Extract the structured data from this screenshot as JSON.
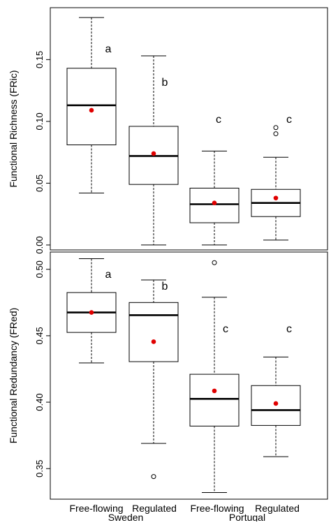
{
  "chart_data": [
    {
      "type": "boxplot",
      "ylabel": "Functional Richness (FRic)",
      "ylim": [
        -0.004,
        0.192
      ],
      "yticks": [
        0.0,
        0.05,
        0.1,
        0.15
      ],
      "ytick_labels": [
        "0.00",
        "0.05",
        "0.10",
        "0.15"
      ],
      "mean_color": "#e00000",
      "boxes": [
        {
          "category": "Free-flowing Sweden",
          "whisker_low": 0.042,
          "q1": 0.081,
          "median": 0.113,
          "q3": 0.143,
          "whisker_high": 0.184,
          "mean": 0.109,
          "outliers": [],
          "letter": "a"
        },
        {
          "category": "Regulated Sweden",
          "whisker_low": 0.0,
          "q1": 0.049,
          "median": 0.072,
          "q3": 0.096,
          "whisker_high": 0.153,
          "mean": 0.074,
          "outliers": [],
          "letter": "b"
        },
        {
          "category": "Free-flowing Portugal",
          "whisker_low": 0.0,
          "q1": 0.018,
          "median": 0.033,
          "q3": 0.046,
          "whisker_high": 0.076,
          "mean": 0.034,
          "outliers": [],
          "letter": "c"
        },
        {
          "category": "Regulated Portugal",
          "whisker_low": 0.004,
          "q1": 0.023,
          "median": 0.034,
          "q3": 0.045,
          "whisker_high": 0.071,
          "mean": 0.038,
          "outliers": [
            0.09,
            0.095
          ],
          "letter": "c"
        }
      ]
    },
    {
      "type": "boxplot",
      "ylabel": "Functional Redundancy (FRed)",
      "ylim": [
        0.327,
        0.513
      ],
      "yticks": [
        0.35,
        0.4,
        0.45,
        0.5
      ],
      "ytick_labels": [
        "0.35",
        "0.40",
        "0.45",
        "0.50"
      ],
      "mean_color": "#e00000",
      "boxes": [
        {
          "category": "Free-flowing Sweden",
          "whisker_low": 0.4295,
          "q1": 0.4525,
          "median": 0.4675,
          "q3": 0.4825,
          "whisker_high": 0.508,
          "mean": 0.4675,
          "outliers": [],
          "letter": "a"
        },
        {
          "category": "Regulated Sweden",
          "whisker_low": 0.369,
          "q1": 0.4305,
          "median": 0.4655,
          "q3": 0.475,
          "whisker_high": 0.492,
          "mean": 0.4455,
          "outliers": [
            0.344
          ],
          "letter": "b"
        },
        {
          "category": "Free-flowing Portugal",
          "whisker_low": 0.332,
          "q1": 0.382,
          "median": 0.4025,
          "q3": 0.421,
          "whisker_high": 0.479,
          "mean": 0.4085,
          "outliers": [
            0.505
          ],
          "letter": "c"
        },
        {
          "category": "Regulated Portugal",
          "whisker_low": 0.359,
          "q1": 0.3825,
          "median": 0.394,
          "q3": 0.4125,
          "whisker_high": 0.434,
          "mean": 0.399,
          "outliers": [],
          "letter": "c"
        }
      ]
    }
  ],
  "x_axis": {
    "categories": [
      "Free-flowing",
      "Regulated",
      "Free-flowing",
      "Regulated"
    ],
    "groups": [
      "Sweden",
      "Portugal"
    ]
  }
}
